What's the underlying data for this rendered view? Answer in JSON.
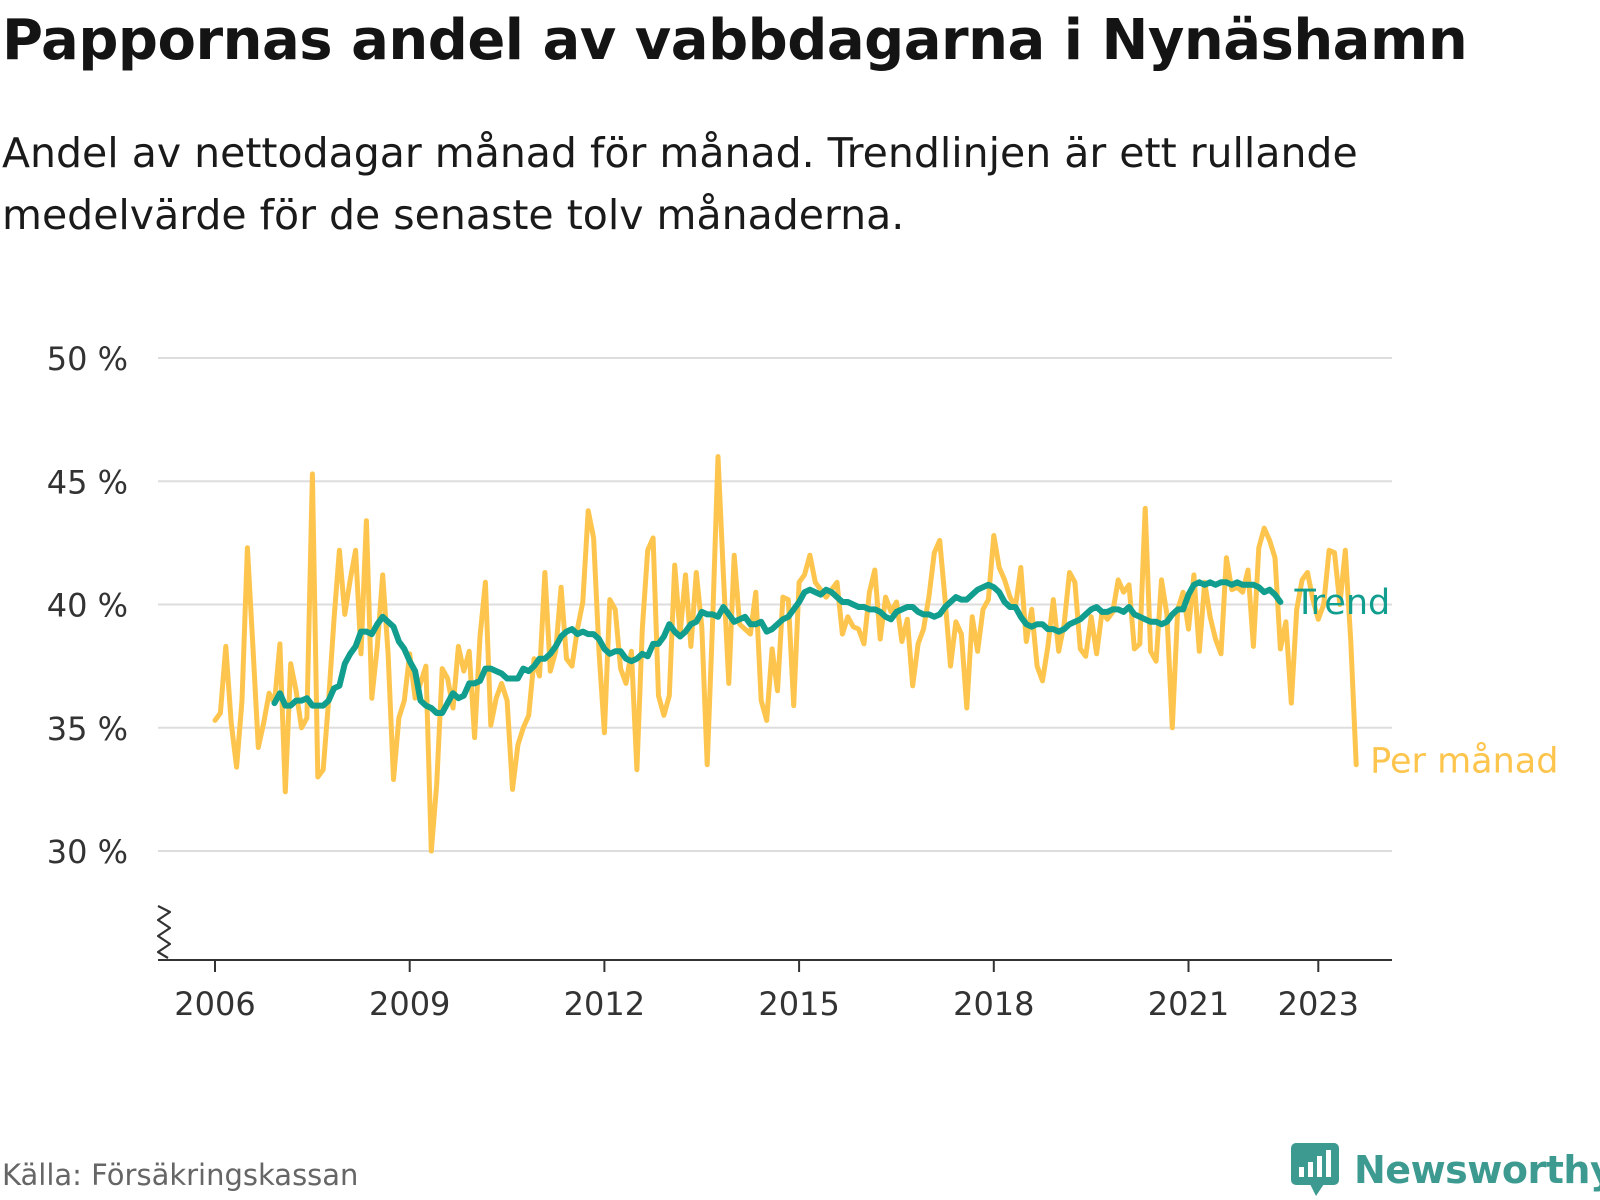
{
  "header": {
    "title": "Pappornas andel av vabbdagarna i Nynäshamn",
    "subtitle": "Andel av nettodagar månad för månad. Trendlinjen är ett rullande medelvärde för de senaste tolv månaderna."
  },
  "footer": {
    "source": "Källa: Försäkringskassan",
    "brand": "Newsworthy",
    "brand_icon": "bar-chart-bubble-icon"
  },
  "colors": {
    "monthly": "#fdc54d",
    "trend": "#119e8e",
    "grid": "#dddddd",
    "axis": "#333333",
    "brand": "#3d9a90"
  },
  "chart_data": {
    "type": "line",
    "ylabel": "",
    "xlabel": "",
    "ylim": [
      30,
      50
    ],
    "y_ticks": [
      30,
      35,
      40,
      45,
      50
    ],
    "y_tick_labels": [
      "30 %",
      "35 %",
      "40 %",
      "45 %",
      "50 %"
    ],
    "x_ticks": [
      2006,
      2009,
      2012,
      2015,
      2018,
      2021,
      2023
    ],
    "x_tick_labels": [
      "2006",
      "2009",
      "2012",
      "2015",
      "2018",
      "2021",
      "2023"
    ],
    "axis_break": true,
    "grid": true,
    "series": [
      {
        "name": "Per månad",
        "start": "2006-01",
        "step": "month",
        "values": [
          35.3,
          35.6,
          38.3,
          35.2,
          33.4,
          36.1,
          42.3,
          38.3,
          34.2,
          35.2,
          36.4,
          36.0,
          38.4,
          32.4,
          37.6,
          36.5,
          35.0,
          35.4,
          45.3,
          33.0,
          33.3,
          36.1,
          39.4,
          42.2,
          39.6,
          41.0,
          42.2,
          38.0,
          43.4,
          36.2,
          38.3,
          41.2,
          38.0,
          32.9,
          35.4,
          36.1,
          38.0,
          36.2,
          36.8,
          37.5,
          30.0,
          32.7,
          37.4,
          37.0,
          35.8,
          38.3,
          37.3,
          38.1,
          34.6,
          38.7,
          40.9,
          35.1,
          36.2,
          36.8,
          36.1,
          32.5,
          34.3,
          35.0,
          35.5,
          37.8,
          37.1,
          41.3,
          37.3,
          38.1,
          40.7,
          37.8,
          37.5,
          39.0,
          40.1,
          43.8,
          42.7,
          38.1,
          34.8,
          40.2,
          39.8,
          37.4,
          36.8,
          38.1,
          33.3,
          39.0,
          42.2,
          42.7,
          36.3,
          35.5,
          36.3,
          41.6,
          38.8,
          41.2,
          38.3,
          41.3,
          39.1,
          33.5,
          39.3,
          46.0,
          41.2,
          36.8,
          42.0,
          39.2,
          39.0,
          38.8,
          40.5,
          36.1,
          35.3,
          38.2,
          36.5,
          40.3,
          40.2,
          35.9,
          40.9,
          41.2,
          42.0,
          40.9,
          40.6,
          40.3,
          40.6,
          40.9,
          38.8,
          39.5,
          39.1,
          39.0,
          38.4,
          40.5,
          41.4,
          38.6,
          40.3,
          39.7,
          40.1,
          38.5,
          39.4,
          36.7,
          38.4,
          39.0,
          40.3,
          42.1,
          42.6,
          40.2,
          37.5,
          39.3,
          38.8,
          35.8,
          39.5,
          38.1,
          39.8,
          40.2,
          42.8,
          41.5,
          41.0,
          40.3,
          39.9,
          41.5,
          38.5,
          39.8,
          37.5,
          36.9,
          38.3,
          40.2,
          38.1,
          39.2,
          41.3,
          40.9,
          38.2,
          37.9,
          39.5,
          38.0,
          39.7,
          39.4,
          39.7,
          41.0,
          40.5,
          40.8,
          38.2,
          38.4,
          43.9,
          38.1,
          37.7,
          41.0,
          39.6,
          35.0,
          39.8,
          40.5,
          39.0,
          41.2,
          38.1,
          40.9,
          39.5,
          38.6,
          38.0,
          41.9,
          40.6,
          40.7,
          40.5,
          41.4,
          38.3,
          42.3,
          43.1,
          42.6,
          41.9,
          38.2,
          39.3,
          36.0,
          39.8,
          41.0,
          41.3,
          40.2,
          39.4,
          40.0,
          42.2,
          42.1,
          40.0,
          42.2,
          38.5,
          33.5
        ]
      },
      {
        "name": "Trend",
        "start": "2006-12",
        "step": "month",
        "values": [
          36.0,
          36.4,
          35.9,
          35.9,
          36.1,
          36.1,
          36.2,
          35.9,
          35.9,
          35.9,
          36.1,
          36.6,
          36.7,
          37.6,
          38.0,
          38.3,
          38.9,
          38.9,
          38.8,
          39.2,
          39.5,
          39.3,
          39.1,
          38.5,
          38.2,
          37.7,
          37.3,
          36.1,
          35.9,
          35.8,
          35.6,
          35.6,
          36.0,
          36.4,
          36.2,
          36.3,
          36.8,
          36.8,
          36.9,
          37.4,
          37.4,
          37.3,
          37.2,
          37.0,
          37.0,
          37.0,
          37.4,
          37.3,
          37.5,
          37.8,
          37.8,
          38.0,
          38.3,
          38.7,
          38.9,
          39.0,
          38.8,
          38.9,
          38.8,
          38.8,
          38.6,
          38.2,
          38.0,
          38.1,
          38.1,
          37.8,
          37.7,
          37.8,
          38.0,
          37.9,
          38.4,
          38.4,
          38.7,
          39.2,
          38.9,
          38.7,
          38.9,
          39.2,
          39.3,
          39.7,
          39.6,
          39.6,
          39.5,
          39.9,
          39.6,
          39.3,
          39.4,
          39.5,
          39.2,
          39.2,
          39.3,
          38.9,
          39.0,
          39.2,
          39.4,
          39.5,
          39.8,
          40.1,
          40.5,
          40.6,
          40.5,
          40.4,
          40.6,
          40.5,
          40.3,
          40.1,
          40.1,
          40.0,
          39.9,
          39.9,
          39.8,
          39.8,
          39.7,
          39.5,
          39.4,
          39.7,
          39.8,
          39.9,
          39.9,
          39.7,
          39.6,
          39.6,
          39.5,
          39.6,
          39.9,
          40.1,
          40.3,
          40.2,
          40.2,
          40.4,
          40.6,
          40.7,
          40.8,
          40.7,
          40.5,
          40.1,
          39.9,
          39.9,
          39.5,
          39.2,
          39.1,
          39.2,
          39.2,
          39.0,
          39.0,
          38.9,
          39.0,
          39.2,
          39.3,
          39.4,
          39.6,
          39.8,
          39.9,
          39.7,
          39.7,
          39.8,
          39.8,
          39.7,
          39.9,
          39.6,
          39.5,
          39.4,
          39.3,
          39.3,
          39.2,
          39.3,
          39.6,
          39.8,
          39.8,
          40.4,
          40.8,
          40.9,
          40.8,
          40.9,
          40.8,
          40.9,
          40.9,
          40.8,
          40.9,
          40.8,
          40.8,
          40.8,
          40.7,
          40.5,
          40.6,
          40.4,
          40.1
        ]
      }
    ]
  }
}
